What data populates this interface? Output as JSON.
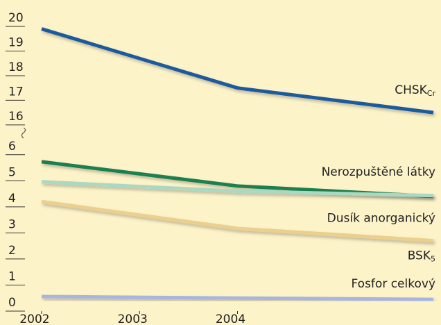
{
  "chart_data": {
    "type": "line",
    "x": [
      2002,
      2004,
      2006
    ],
    "xlim": [
      2002,
      2006
    ],
    "xticks": [
      2002,
      2003,
      2004
    ],
    "ylim": [
      0,
      20
    ],
    "ybreak": [
      6.5,
      15.8
    ],
    "yticks": [
      0,
      1,
      2,
      3,
      4,
      5,
      6,
      16,
      17,
      18,
      19,
      20
    ],
    "series": [
      {
        "name": "CHSK",
        "subscript": "Cr",
        "color": "#1d5a9e",
        "values": [
          19.9,
          17.5,
          16.5
        ]
      },
      {
        "name": "Nerozpuštěné látky",
        "color": "#1e7f4f",
        "values": [
          5.73,
          4.8,
          4.4
        ]
      },
      {
        "name": "Dusík anorganický",
        "color": "#a9d9c2",
        "values": [
          4.96,
          4.6,
          4.43
        ]
      },
      {
        "name": "BSK",
        "subscript": "5",
        "color": "#eccf8c",
        "values": [
          4.2,
          3.17,
          2.7
        ]
      },
      {
        "name": "Fosfor celkový",
        "color": "#a8b6de",
        "values": [
          0.56,
          0.5,
          0.45
        ]
      }
    ]
  }
}
